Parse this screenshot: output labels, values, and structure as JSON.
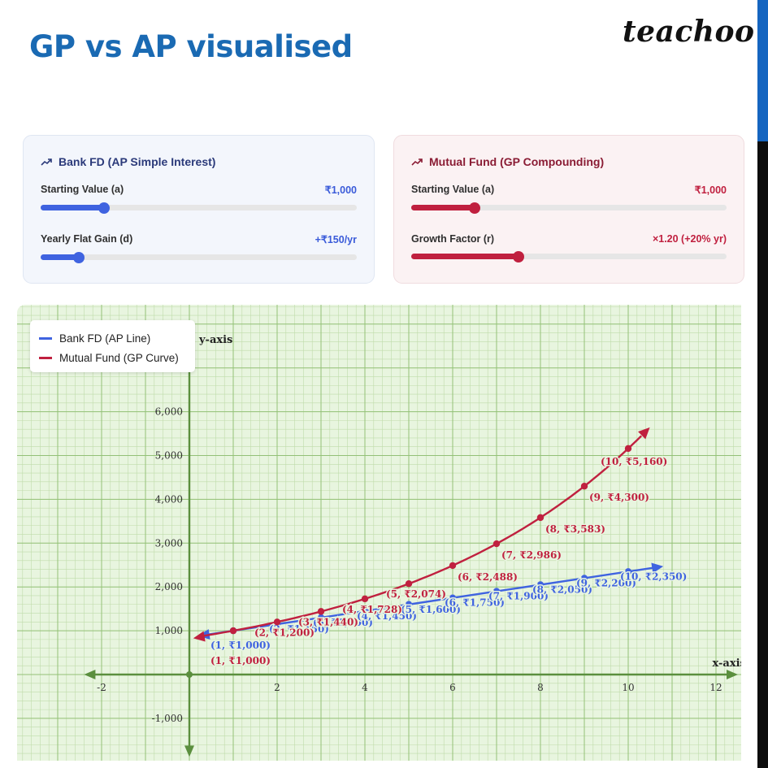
{
  "header": {
    "title": "GP vs AP visualised",
    "brand": "teachoo"
  },
  "colors": {
    "title": "#1a6ab3",
    "ap": "#3f63e0",
    "gp": "#c0203f",
    "grid_bg": "#e8f5df",
    "grid_minor": "#bfdcaa",
    "grid_major": "#93c177",
    "axis": "#5b8f3e"
  },
  "controls": {
    "ap": {
      "title": "Bank FD (AP Simple Interest)",
      "icon": "trend-up-icon",
      "start_label": "Starting Value (a)",
      "start_value": "₹1,000",
      "start_fraction": 0.2,
      "gain_label": "Yearly Flat Gain (d)",
      "gain_value": "+₹150/yr",
      "gain_fraction": 0.12
    },
    "gp": {
      "title": "Mutual Fund (GP Compounding)",
      "icon": "trend-up-icon",
      "start_label": "Starting Value (a)",
      "start_value": "₹1,000",
      "start_fraction": 0.2,
      "factor_label": "Growth Factor (r)",
      "factor_value": "×1.20 (+20% yr)",
      "factor_fraction": 0.34
    }
  },
  "chart_data": {
    "type": "line",
    "xlabel": "x-axis",
    "ylabel": "y-axis",
    "xlim": [
      -4,
      12.3
    ],
    "ylim": [
      -1900,
      8600
    ],
    "x_ticks": [
      -2,
      2,
      4,
      6,
      8,
      10,
      12
    ],
    "x_tick_labels": [
      "-2",
      "2",
      "4",
      "6",
      "8",
      "10",
      "12"
    ],
    "y_ticks": [
      6000,
      5000,
      4000,
      3000,
      2000,
      1000,
      -1000
    ],
    "y_tick_labels": [
      "6,000",
      "5,000",
      "4,000",
      "3,000",
      "2,000",
      "1,000",
      "-1,000"
    ],
    "legend_position": "top-left",
    "series": [
      {
        "name": "Bank FD (AP Line)",
        "color": "#3f63e0",
        "x": [
          1,
          2,
          3,
          4,
          5,
          6,
          7,
          8,
          9,
          10
        ],
        "y": [
          1000,
          1150,
          1300,
          1450,
          1600,
          1750,
          1900,
          2050,
          2200,
          2350
        ],
        "labels": [
          "(1, ₹1,000)",
          "(2, ₹1,150)",
          "(3, ₹1,300)",
          "(4, ₹1,450)",
          "(5, ₹1,600)",
          "(6, ₹1,750)",
          "(7, ₹1,900)",
          "(8, ₹2,050)",
          "(9, ₹2,200)",
          "(10, ₹2,350)"
        ]
      },
      {
        "name": "Mutual Fund (GP Curve)",
        "color": "#c0203f",
        "x": [
          1,
          2,
          3,
          4,
          5,
          6,
          7,
          8,
          9,
          10
        ],
        "y": [
          1000,
          1200,
          1440,
          1728,
          2074,
          2488,
          2986,
          3583,
          4300,
          5160
        ],
        "labels": [
          "(1, ₹1,000)",
          "(2, ₹1,200)",
          "(3, ₹1,440)",
          "(4, ₹1,728)",
          "(5, ₹2,074)",
          "(6, ₹2,488)",
          "(7, ₹2,986)",
          "(8, ₹3,583)",
          "(9, ₹4,300)",
          "(10, ₹5,160)"
        ]
      }
    ]
  }
}
